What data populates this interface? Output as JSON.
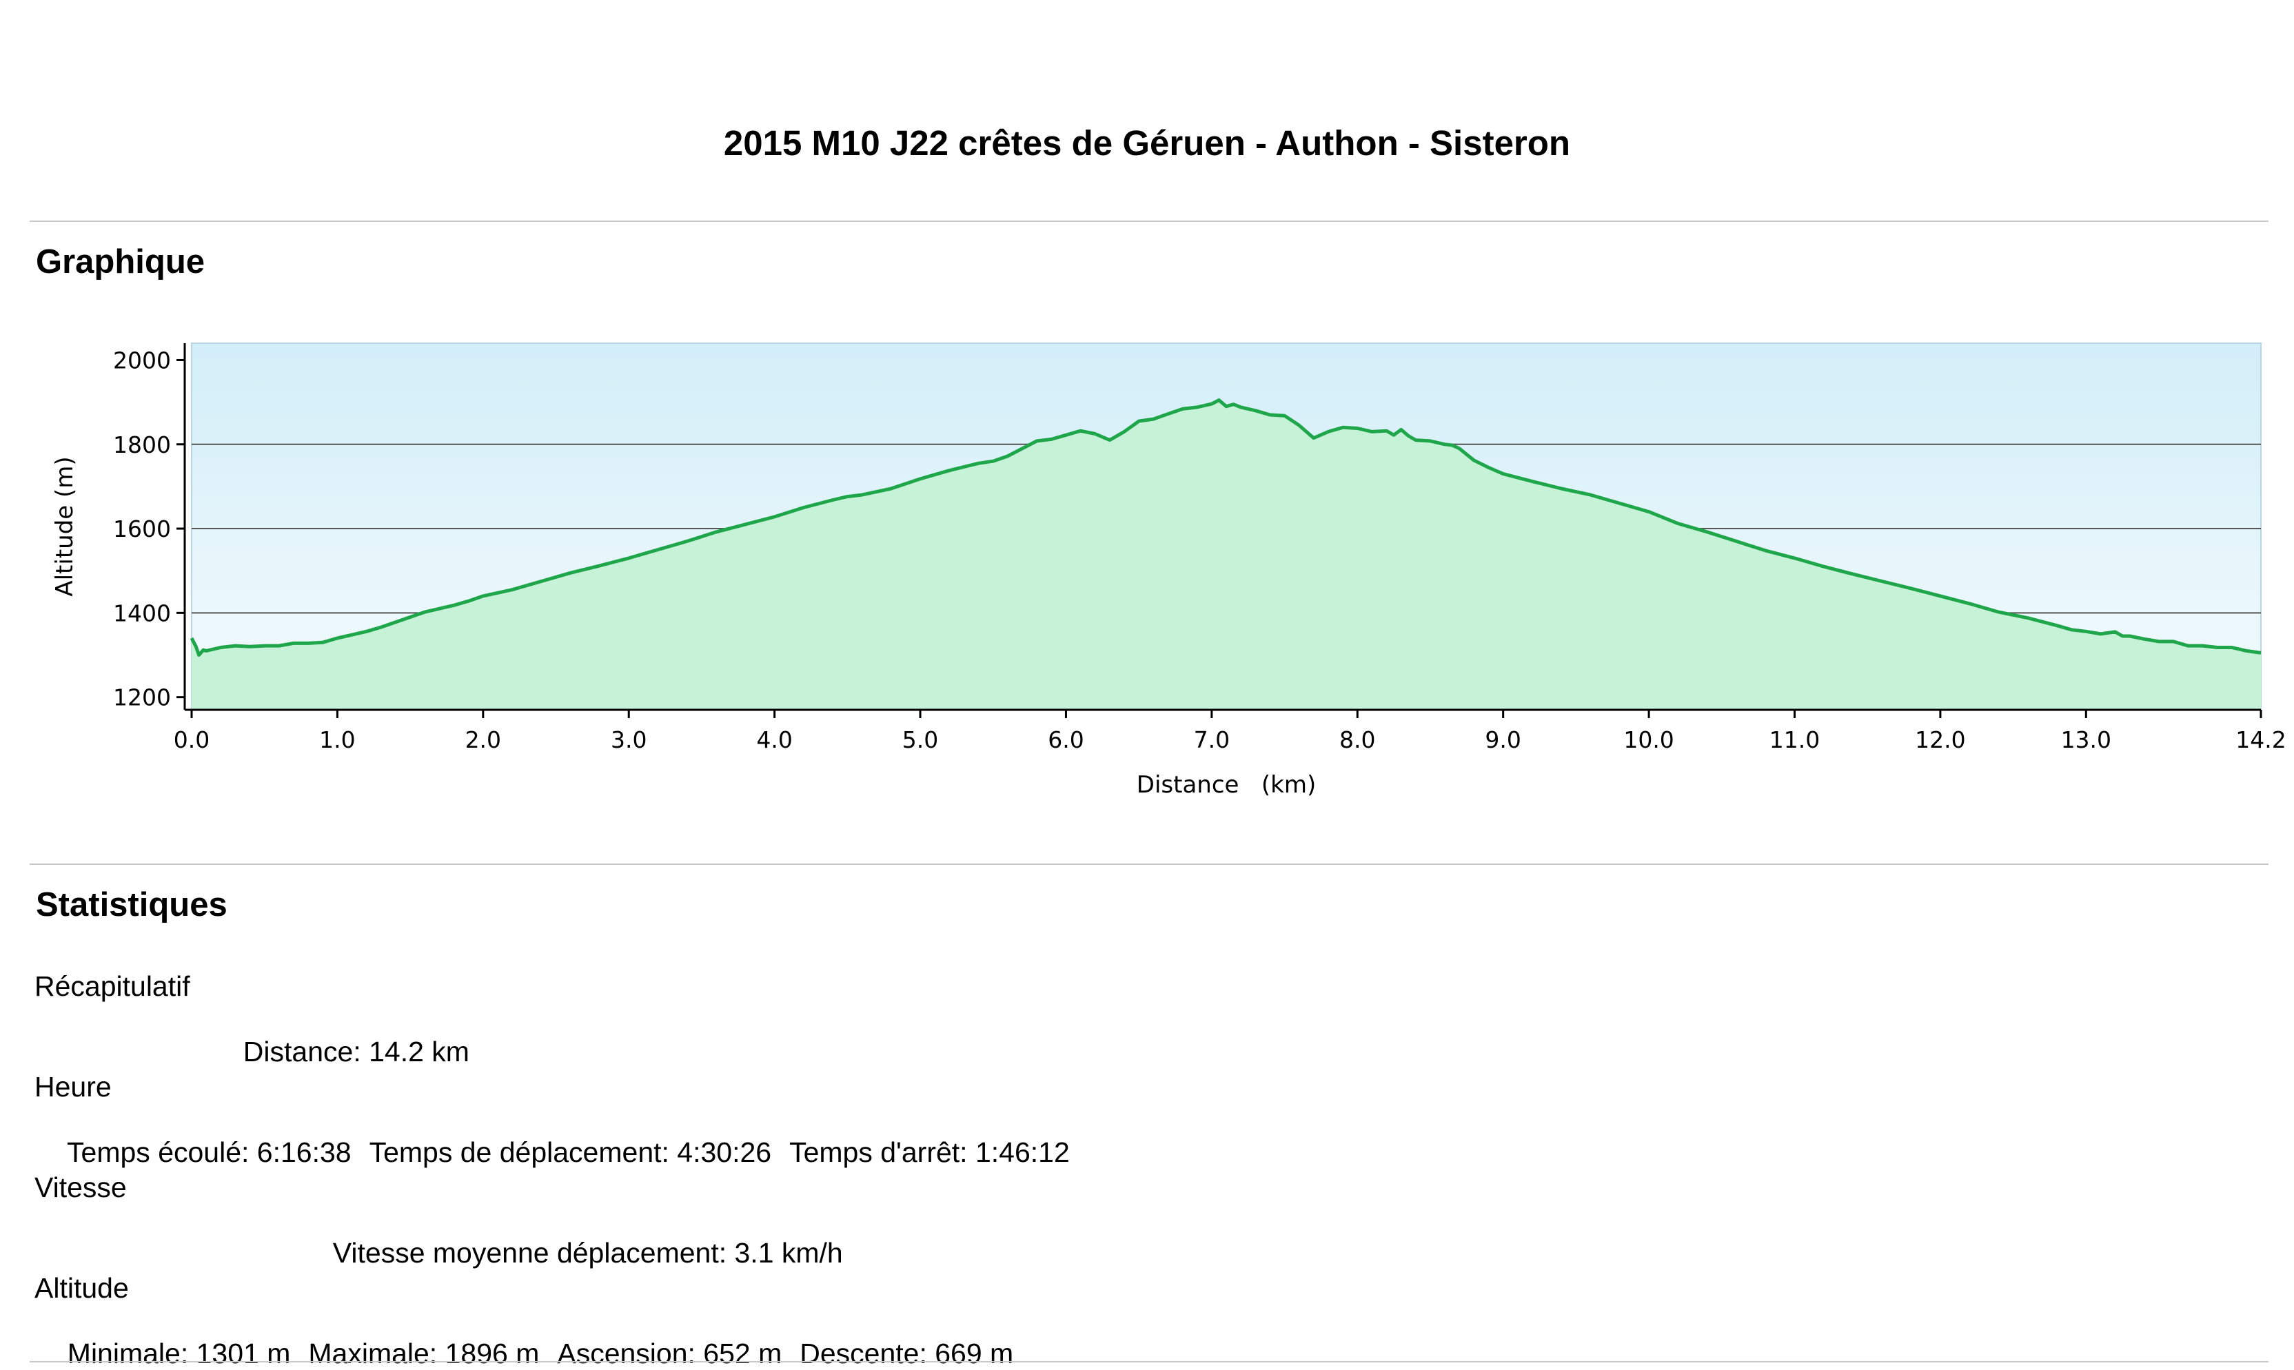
{
  "header": {
    "title": "2015 M10 J22 crêtes de Géruen - Authon - Sisteron"
  },
  "sections": {
    "graph_heading": "Graphique",
    "stats_heading": "Statistiques"
  },
  "chart_data": {
    "type": "area",
    "xlabel": "Distance   (km)",
    "ylabel": "Altitude (m)",
    "xlim": [
      0,
      14.2
    ],
    "ylim": [
      1170,
      2040
    ],
    "x_ticks": [
      "0.0",
      "1.0",
      "2.0",
      "3.0",
      "4.0",
      "5.0",
      "6.0",
      "7.0",
      "8.0",
      "9.0",
      "10.0",
      "11.0",
      "12.0",
      "13.0",
      "14.2"
    ],
    "x_tick_values": [
      0,
      1,
      2,
      3,
      4,
      5,
      6,
      7,
      8,
      9,
      10,
      11,
      12,
      13,
      14.2
    ],
    "y_ticks": [
      "1200",
      "1400",
      "1600",
      "1800",
      "2000"
    ],
    "y_tick_values": [
      1200,
      1400,
      1600,
      1800,
      2000
    ],
    "gridlines_y": [
      1400,
      1600,
      1800
    ],
    "line_color": "#1fa64a",
    "fill_color": "#c6f3d7",
    "bg_top_color": "#d2eef8",
    "bg_bottom_color": "#f4fbfd",
    "series": [
      {
        "x": [
          0.0,
          0.03,
          0.05,
          0.08,
          0.1,
          0.2,
          0.3,
          0.4,
          0.5,
          0.6,
          0.7,
          0.8,
          0.9,
          1.0,
          1.1,
          1.2,
          1.3,
          1.4,
          1.5,
          1.6,
          1.7,
          1.8,
          1.9,
          2.0,
          2.2,
          2.4,
          2.6,
          2.8,
          3.0,
          3.2,
          3.4,
          3.6,
          3.8,
          4.0,
          4.2,
          4.4,
          4.5,
          4.6,
          4.8,
          5.0,
          5.2,
          5.4,
          5.5,
          5.6,
          5.7,
          5.8,
          5.9,
          6.0,
          6.1,
          6.2,
          6.3,
          6.4,
          6.5,
          6.6,
          6.7,
          6.8,
          6.9,
          7.0,
          7.05,
          7.1,
          7.15,
          7.2,
          7.3,
          7.4,
          7.5,
          7.6,
          7.7,
          7.8,
          7.9,
          8.0,
          8.1,
          8.2,
          8.25,
          8.3,
          8.35,
          8.4,
          8.5,
          8.6,
          8.65,
          8.7,
          8.8,
          8.9,
          9.0,
          9.2,
          9.4,
          9.6,
          9.8,
          10.0,
          10.2,
          10.4,
          10.6,
          10.8,
          11.0,
          11.2,
          11.4,
          11.6,
          11.8,
          12.0,
          12.2,
          12.4,
          12.6,
          12.8,
          12.9,
          13.0,
          13.1,
          13.2,
          13.25,
          13.3,
          13.4,
          13.5,
          13.6,
          13.7,
          13.8,
          13.9,
          14.0,
          14.1,
          14.2
        ],
        "y": [
          1340,
          1320,
          1300,
          1312,
          1310,
          1318,
          1322,
          1320,
          1322,
          1322,
          1328,
          1328,
          1330,
          1340,
          1348,
          1356,
          1366,
          1378,
          1390,
          1402,
          1410,
          1418,
          1428,
          1440,
          1455,
          1475,
          1495,
          1512,
          1530,
          1550,
          1570,
          1592,
          1610,
          1628,
          1650,
          1668,
          1676,
          1680,
          1695,
          1718,
          1738,
          1755,
          1760,
          1772,
          1790,
          1808,
          1812,
          1822,
          1832,
          1825,
          1810,
          1830,
          1855,
          1860,
          1872,
          1884,
          1888,
          1896,
          1905,
          1890,
          1895,
          1888,
          1880,
          1870,
          1868,
          1845,
          1815,
          1830,
          1840,
          1838,
          1830,
          1832,
          1822,
          1835,
          1820,
          1810,
          1808,
          1800,
          1798,
          1790,
          1762,
          1745,
          1730,
          1712,
          1695,
          1680,
          1660,
          1640,
          1612,
          1592,
          1570,
          1548,
          1530,
          1510,
          1492,
          1475,
          1458,
          1440,
          1422,
          1402,
          1388,
          1370,
          1360,
          1356,
          1350,
          1355,
          1345,
          1345,
          1338,
          1332,
          1332,
          1322,
          1322,
          1318,
          1318,
          1310,
          1305
        ]
      }
    ]
  },
  "stats": {
    "recap": {
      "label": "Récapitulatif",
      "distance": "Distance: 14.2 km"
    },
    "heure": {
      "label": "Heure",
      "elapsed": "Temps écoulé: 6:16:38",
      "moving": "Temps de déplacement: 4:30:26",
      "stopped": "Temps d'arrêt: 1:46:12"
    },
    "vitesse": {
      "label": "Vitesse",
      "avg_moving": "Vitesse moyenne déplacement: 3.1 km/h"
    },
    "altitude": {
      "label": "Altitude",
      "min": "Minimale: 1301 m",
      "max": "Maximale: 1896 m",
      "ascent": "Ascension: 652 m",
      "descent": "Descente: 669 m"
    }
  }
}
